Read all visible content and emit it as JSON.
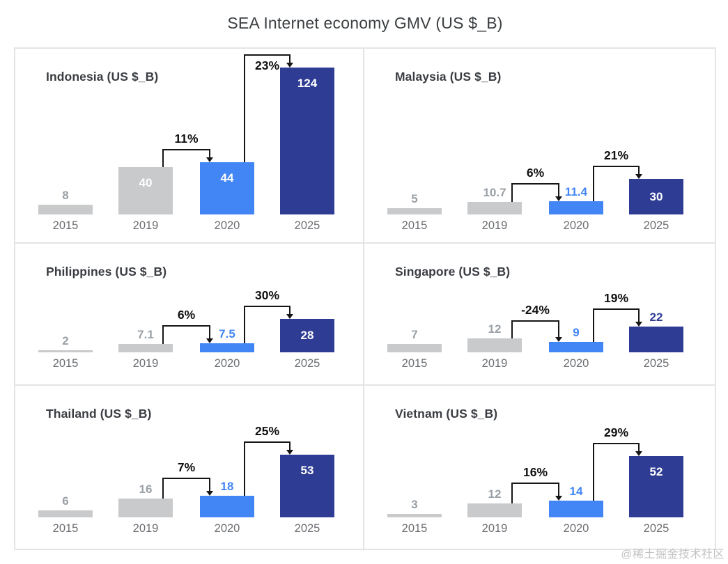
{
  "page": {
    "title": "SEA Internet economy GMV (US $_B)",
    "watermark": "@稀土掘金技术社区"
  },
  "chart_data": {
    "type": "bar",
    "title": "SEA Internet economy GMV (US $_B)",
    "value_unit": "US $ billions",
    "categories": [
      "2015",
      "2019",
      "2020",
      "2025"
    ],
    "grid": "off",
    "legend_position": "none",
    "layout_hint": "2x3 small multiples, shared value scale, growth-arrow annotations between bars",
    "panels": [
      {
        "country": "Indonesia",
        "title": "Indonesia (US $_B)",
        "values": [
          8,
          40,
          44,
          124
        ],
        "labels": [
          "8",
          "40",
          "44",
          "124"
        ],
        "label_placement": [
          "above",
          "inside",
          "inside",
          "inside"
        ],
        "annotations": [
          {
            "from": 1,
            "to": 2,
            "label": "11%",
            "label_below_line": false
          },
          {
            "from": 2,
            "to": 3,
            "label": "23%",
            "label_below_line": true
          }
        ]
      },
      {
        "country": "Malaysia",
        "title": "Malaysia (US $_B)",
        "values": [
          5,
          10.7,
          11.4,
          30
        ],
        "labels": [
          "5",
          "10.7",
          "11.4",
          "30"
        ],
        "label_placement": [
          "above",
          "above",
          "above",
          "inside"
        ],
        "annotations": [
          {
            "from": 1,
            "to": 2,
            "label": "6%",
            "label_below_line": false
          },
          {
            "from": 2,
            "to": 3,
            "label": "21%",
            "label_below_line": false
          }
        ]
      },
      {
        "country": "Philippines",
        "title": "Philippines (US $_B)",
        "values": [
          2,
          7.1,
          7.5,
          28
        ],
        "labels": [
          "2",
          "7.1",
          "7.5",
          "28"
        ],
        "label_placement": [
          "above",
          "above",
          "above",
          "inside"
        ],
        "annotations": [
          {
            "from": 1,
            "to": 2,
            "label": "6%",
            "label_below_line": false
          },
          {
            "from": 2,
            "to": 3,
            "label": "30%",
            "label_below_line": false
          }
        ]
      },
      {
        "country": "Singapore",
        "title": "Singapore (US $_B)",
        "values": [
          7,
          12,
          9,
          22
        ],
        "labels": [
          "7",
          "12",
          "9",
          "22"
        ],
        "label_placement": [
          "above",
          "above",
          "above",
          "above"
        ],
        "annotations": [
          {
            "from": 1,
            "to": 2,
            "label": "-24%",
            "label_below_line": false
          },
          {
            "from": 2,
            "to": 3,
            "label": "19%",
            "label_below_line": false
          }
        ]
      },
      {
        "country": "Thailand",
        "title": "Thailand (US $_B)",
        "values": [
          6,
          16,
          18,
          53
        ],
        "labels": [
          "6",
          "16",
          "18",
          "53"
        ],
        "label_placement": [
          "above",
          "above",
          "above",
          "inside"
        ],
        "annotations": [
          {
            "from": 1,
            "to": 2,
            "label": "7%",
            "label_below_line": false
          },
          {
            "from": 2,
            "to": 3,
            "label": "25%",
            "label_below_line": false
          }
        ]
      },
      {
        "country": "Vietnam",
        "title": "Vietnam (US $_B)",
        "values": [
          3,
          12,
          14,
          52
        ],
        "labels": [
          "3",
          "12",
          "14",
          "52"
        ],
        "label_placement": [
          "above",
          "above",
          "above",
          "inside"
        ],
        "annotations": [
          {
            "from": 1,
            "to": 2,
            "label": "16%",
            "label_below_line": false
          },
          {
            "from": 2,
            "to": 3,
            "label": "29%",
            "label_below_line": false
          }
        ]
      }
    ],
    "palette": {
      "bar_2015": "#C9CACC",
      "bar_2019": "#C9CACC",
      "bar_2020": "#4285F4",
      "bar_2025": "#2F3C94",
      "label_inside": "#FFFFFF",
      "label_above_gray": "#9AA0A6",
      "label_above_blue": "#4285F4",
      "label_above_navy": "#2F3C94",
      "annotation_color": "#161616",
      "year_label_color": "#6B6E72",
      "panel_title_color": "#3A3D42",
      "main_title_color": "#3C4043",
      "border_color": "#E4E4E4",
      "watermark_color": "#C2C2C2"
    }
  }
}
